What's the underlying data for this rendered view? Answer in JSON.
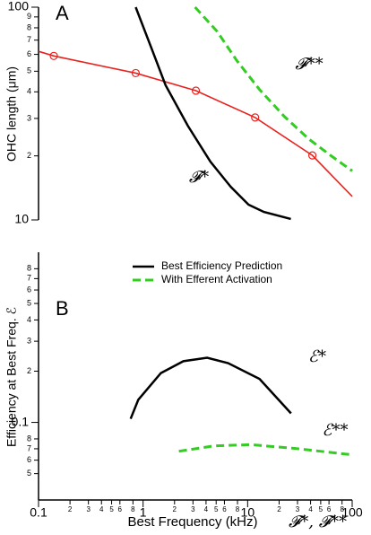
{
  "chart_data": [
    {
      "type": "line",
      "panel_label": "A",
      "y_label": "OHC length (μm)",
      "log_x": true,
      "log_y": true,
      "xlim": [
        0.1,
        100
      ],
      "ylim": [
        10,
        100
      ],
      "yticks": [
        100,
        {
          "value": 90,
          "label": "9"
        },
        {
          "value": 80,
          "label": "8"
        },
        {
          "value": 70,
          "label": "7"
        },
        {
          "value": 60,
          "label": "6"
        },
        {
          "value": 50,
          "label": "5"
        },
        {
          "value": 40,
          "label": "4"
        },
        {
          "value": 30,
          "label": "3"
        },
        {
          "value": 20,
          "label": "2"
        },
        10
      ],
      "series": [
        {
          "color": "#e8231f",
          "x": [
            0.1,
            0.14,
            0.85,
            3.2,
            11.8,
            41.6,
            100
          ],
          "values": [
            62,
            59,
            49,
            40.5,
            30.3,
            20.1,
            12.9
          ]
        },
        {
          "color": "#e8231f",
          "marker": "circle",
          "line": false,
          "x": [
            0.14,
            0.85,
            3.2,
            11.8,
            41.6
          ],
          "values": [
            59,
            49,
            40.5,
            30.3,
            20.1
          ]
        },
        {
          "color": "#000000",
          "x": [
            0.85,
            1.22,
            1.64,
            2.68,
            4.4,
            6.9,
            10.2,
            14.3,
            25.9
          ],
          "values": [
            100,
            63,
            43,
            27.7,
            18.8,
            14.3,
            11.8,
            10.9,
            10.1
          ]
        },
        {
          "color": "#33cc22",
          "dashed": true,
          "x": [
            3.14,
            5.1,
            7.9,
            13,
            22.5,
            38.5,
            63,
            100
          ],
          "values": [
            100,
            77,
            56,
            41,
            30.6,
            24,
            20,
            17
          ]
        }
      ],
      "annotations": [
        "𝓕*",
        "𝓕**"
      ]
    },
    {
      "type": "line",
      "panel_label": "B",
      "y_label": "Efficiency at Best Freq. ℰ",
      "x_label": "Best Frequency (kHz)",
      "x_label_symbols": "𝓕*, 𝓕**",
      "log_x": true,
      "log_y": true,
      "legend": "top",
      "xlim": [
        0.1,
        100
      ],
      "ylim": [
        0.035,
        1
      ],
      "xticks": [
        0.1,
        {
          "value": 0.2,
          "label": "2"
        },
        {
          "value": 0.3,
          "label": "3"
        },
        {
          "value": 0.4,
          "label": "4"
        },
        {
          "value": 0.5,
          "label": "5"
        },
        {
          "value": 0.6,
          "label": "6"
        },
        {
          "value": 0.8,
          "label": "8"
        },
        1,
        {
          "value": 2,
          "label": "2"
        },
        {
          "value": 3,
          "label": "3"
        },
        {
          "value": 4,
          "label": "4"
        },
        {
          "value": 5,
          "label": "5"
        },
        {
          "value": 6,
          "label": "6"
        },
        {
          "value": 8,
          "label": "8"
        },
        10,
        {
          "value": 20,
          "label": "2"
        },
        {
          "value": 30,
          "label": "3"
        },
        {
          "value": 40,
          "label": "4"
        },
        {
          "value": 50,
          "label": "5"
        },
        {
          "value": 60,
          "label": "6"
        },
        {
          "value": 80,
          "label": "8"
        },
        100
      ],
      "yticks": [
        {
          "value": 0.8,
          "label": "8"
        },
        {
          "value": 0.7,
          "label": "7"
        },
        {
          "value": 0.6,
          "label": "6"
        },
        {
          "value": 0.5,
          "label": "5"
        },
        {
          "value": 0.4,
          "label": "4"
        },
        {
          "value": 0.3,
          "label": "3"
        },
        {
          "value": 0.2,
          "label": "2"
        },
        0.1,
        {
          "value": 0.08,
          "label": "8"
        },
        {
          "value": 0.07,
          "label": "7"
        },
        {
          "value": 0.06,
          "label": "6"
        },
        {
          "value": 0.05,
          "label": "5"
        }
      ],
      "series": [
        {
          "name": "Best Efficiency Prediction",
          "color": "#000000",
          "x": [
            0.76,
            0.9,
            1.48,
            2.43,
            4.1,
            6.5,
            13,
            26
          ],
          "values": [
            0.105,
            0.136,
            0.195,
            0.229,
            0.24,
            0.223,
            0.18,
            0.113
          ]
        },
        {
          "name": "With Efferent Activation",
          "color": "#33cc22",
          "dashed": true,
          "x": [
            2.2,
            4.8,
            10.7,
            28.6,
            100
          ],
          "values": [
            0.0677,
            0.0728,
            0.074,
            0.0703,
            0.0645
          ]
        }
      ],
      "annotations": [
        "ℰ*",
        "ℰ**"
      ]
    }
  ]
}
